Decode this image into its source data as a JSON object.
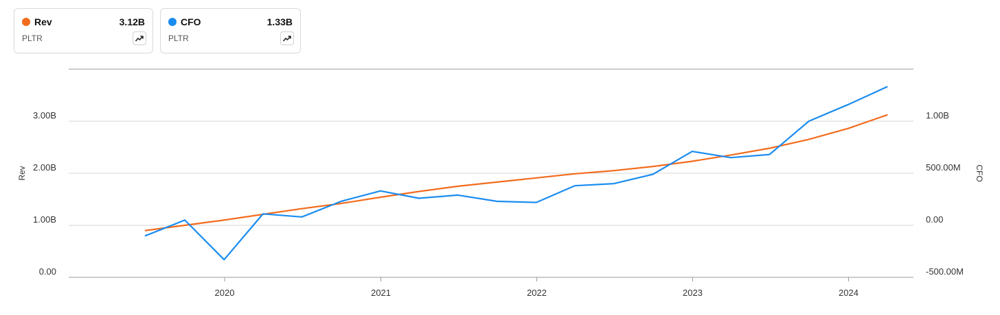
{
  "legend": [
    {
      "name": "Rev",
      "value": "3.12B",
      "ticker": "PLTR",
      "color": "#f26b1d",
      "icon": "trend-up-icon"
    },
    {
      "name": "CFO",
      "value": "1.33B",
      "ticker": "PLTR",
      "color": "#1a8cf0",
      "icon": "trend-up-icon"
    }
  ],
  "chart_data": {
    "type": "line",
    "title": "",
    "xlabel": "",
    "ylabel": "Rev",
    "ylabel_right": "CFO",
    "x_ticks": [
      "2020",
      "2021",
      "2022",
      "2023",
      "2024"
    ],
    "y_ticks_left": [
      "0.00",
      "1.00B",
      "2.00B",
      "3.00B"
    ],
    "y_ticks_right": [
      "-500.00M",
      "0.00",
      "500.00M",
      "1.00B"
    ],
    "ylim_left": [
      0,
      4000000000
    ],
    "ylim_right": [
      -500000000,
      1500000000
    ],
    "grid": true,
    "legend_position": "top-left",
    "x": [
      "2019-06-30",
      "2019-09-30",
      "2019-12-31",
      "2020-03-31",
      "2020-06-30",
      "2020-09-30",
      "2020-12-31",
      "2021-03-31",
      "2021-06-30",
      "2021-09-30",
      "2021-12-31",
      "2022-03-31",
      "2022-06-30",
      "2022-09-30",
      "2022-12-31",
      "2023-03-31",
      "2023-06-30",
      "2023-09-30",
      "2023-12-31",
      "2024-03-31"
    ],
    "series": [
      {
        "name": "Rev",
        "axis": "left",
        "color": "#f26b1d",
        "values": [
          900000000.0,
          1000000000.0,
          1100000000.0,
          1210000000.0,
          1320000000.0,
          1420000000.0,
          1540000000.0,
          1650000000.0,
          1750000000.0,
          1830000000.0,
          1910000000.0,
          1990000000.0,
          2050000000.0,
          2130000000.0,
          2230000000.0,
          2350000000.0,
          2480000000.0,
          2650000000.0,
          2860000000.0,
          3120000000.0
        ]
      },
      {
        "name": "CFO",
        "axis": "right",
        "color": "#1a8cf0",
        "values": [
          -100000000.0,
          50000000.0,
          -330000000.0,
          110000000.0,
          80000000.0,
          230000000.0,
          330000000.0,
          260000000.0,
          290000000.0,
          230000000.0,
          220000000.0,
          380000000.0,
          400000000.0,
          490000000.0,
          710000000.0,
          650000000.0,
          680000000.0,
          1000000000.0,
          1160000000.0,
          1330000000.0
        ]
      }
    ]
  }
}
